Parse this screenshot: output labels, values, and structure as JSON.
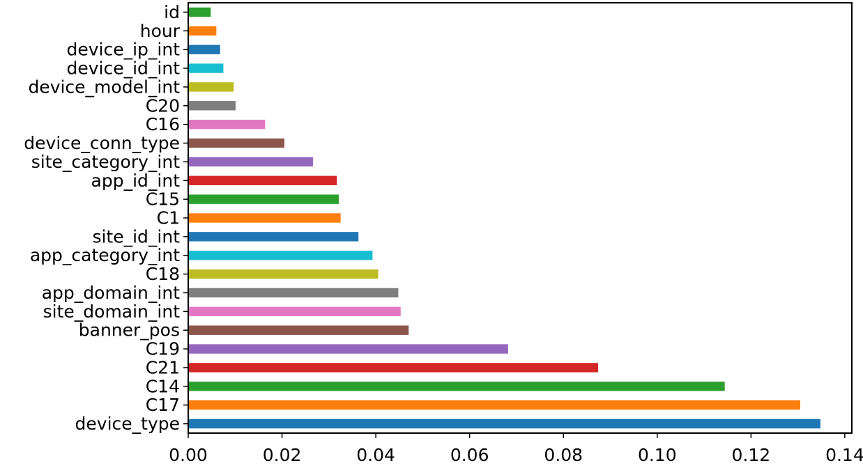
{
  "chart_data": {
    "type": "bar",
    "orientation": "horizontal",
    "categories": [
      "device_type",
      "C17",
      "C14",
      "C21",
      "C19",
      "banner_pos",
      "site_domain_int",
      "app_domain_int",
      "C18",
      "app_category_int",
      "site_id_int",
      "C1",
      "C15",
      "app_id_int",
      "site_category_int",
      "device_conn_type",
      "C16",
      "C20",
      "device_model_int",
      "device_id_int",
      "device_ip_int",
      "hour",
      "id"
    ],
    "values": [
      0.1348,
      0.1305,
      0.1144,
      0.0874,
      0.0682,
      0.047,
      0.0453,
      0.0448,
      0.0405,
      0.0393,
      0.0363,
      0.0325,
      0.0321,
      0.0317,
      0.0266,
      0.0205,
      0.0164,
      0.0101,
      0.0097,
      0.0075,
      0.0068,
      0.006,
      0.0048
    ],
    "colors": [
      "#1f77b4",
      "#ff7f0e",
      "#2ca02c",
      "#d62728",
      "#9467bd",
      "#8c564b",
      "#e377c2",
      "#7f7f7f",
      "#bcbd22",
      "#17becf",
      "#1f77b4",
      "#ff7f0e",
      "#2ca02c",
      "#d62728",
      "#9467bd",
      "#8c564b",
      "#e377c2",
      "#7f7f7f",
      "#bcbd22",
      "#17becf",
      "#1f77b4",
      "#ff7f0e",
      "#2ca02c"
    ],
    "xticks": [
      "0.00",
      "0.02",
      "0.04",
      "0.06",
      "0.08",
      "0.10",
      "0.12",
      "0.14"
    ],
    "xtick_values": [
      0,
      0.02,
      0.04,
      0.06,
      0.08,
      0.1,
      0.12,
      0.14
    ],
    "xlim": [
      0,
      0.1415
    ],
    "title": "",
    "xlabel": "",
    "ylabel": "",
    "grid": false,
    "legend": "none"
  }
}
